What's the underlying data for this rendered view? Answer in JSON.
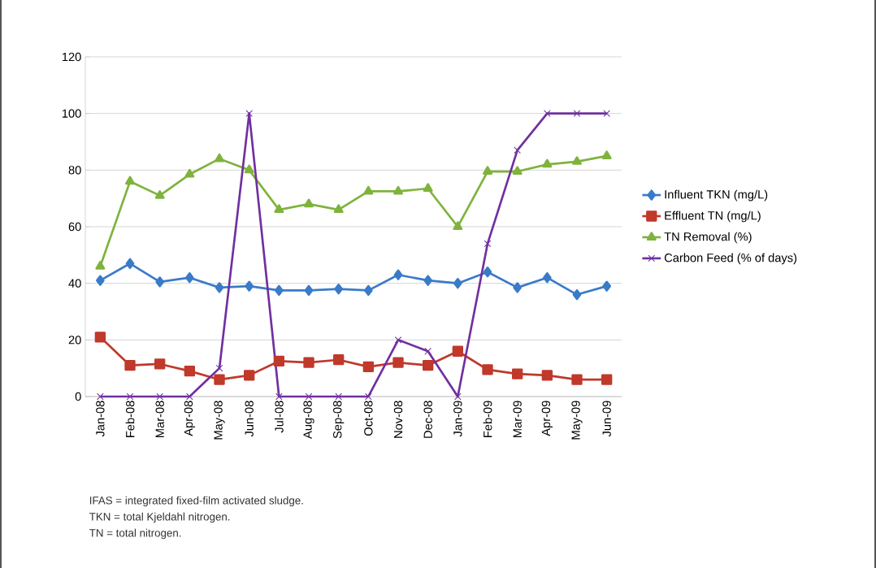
{
  "chart_data": {
    "type": "line",
    "categories": [
      "Jan-08",
      "Feb-08",
      "Mar-08",
      "Apr-08",
      "May-08",
      "Jun-08",
      "Jul-08",
      "Aug-08",
      "Sep-08",
      "Oct-08",
      "Nov-08",
      "Dec-08",
      "Jan-09",
      "Feb-09",
      "Mar-09",
      "Apr-09",
      "May-09",
      "Jun-09"
    ],
    "series": [
      {
        "name": "Influent TKN (mg/L)",
        "color": "#3a7bc8",
        "marker": "diamond",
        "values": [
          41,
          47,
          40.5,
          42,
          38.5,
          39,
          37.5,
          37.5,
          38,
          37.5,
          43,
          41,
          40,
          44,
          38.5,
          42,
          36,
          39
        ]
      },
      {
        "name": "Effluent TN (mg/L)",
        "color": "#c0392b",
        "marker": "square",
        "values": [
          21,
          11,
          11.5,
          9,
          6,
          7.5,
          12.5,
          12,
          13,
          10.5,
          12,
          11,
          16,
          9.5,
          8,
          7.5,
          6,
          6
        ]
      },
      {
        "name": "TN Removal (%)",
        "color": "#7fb33d",
        "marker": "triangle",
        "values": [
          46,
          76,
          71,
          78.5,
          84,
          80,
          66,
          68,
          66,
          72.5,
          72.5,
          73.5,
          60,
          79.5,
          79.5,
          82,
          83,
          85
        ]
      },
      {
        "name": "Carbon Feed (% of days)",
        "color": "#7030a0",
        "marker": "cross",
        "values": [
          0,
          0,
          0,
          0,
          10,
          100,
          0,
          0,
          0,
          0,
          20,
          16,
          0,
          54,
          87,
          100,
          100,
          100
        ]
      }
    ],
    "ylim": [
      0,
      120
    ],
    "yticks": [
      0,
      20,
      40,
      60,
      80,
      100,
      120
    ],
    "grid": "y",
    "legend": "right",
    "line_style": "solid",
    "annotations": [
      "IFAS = integrated fixed-film activated sludge.",
      "TKN = total Kjeldahl nitrogen.",
      "TN = total nitrogen."
    ]
  }
}
